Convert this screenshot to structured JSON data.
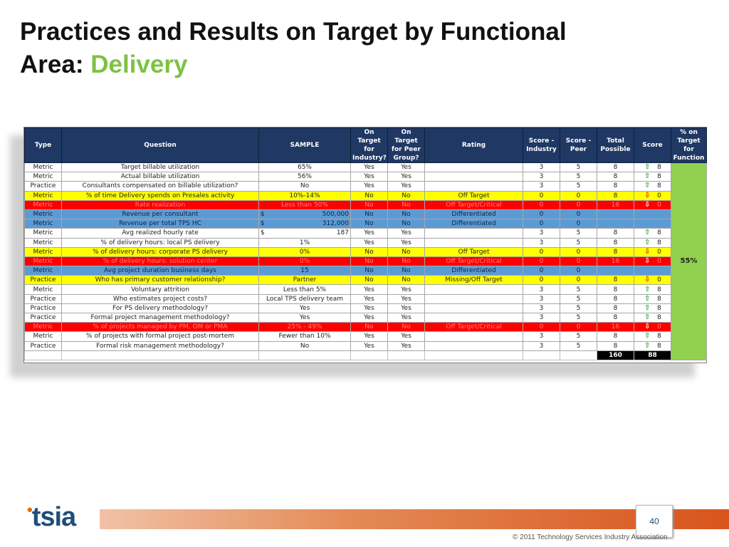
{
  "title": {
    "line1": "Practices and Results on Target by Functional",
    "line2_prefix": "Area: ",
    "line2_accent": "Delivery"
  },
  "table": {
    "headers": [
      "Type",
      "Question",
      "SAMPLE",
      "On Target for Industry?",
      "On Target for Peer Group?",
      "Rating",
      "Score - Industry",
      "Score - Peer",
      "Total Possible",
      "Score",
      "% on Target for Function"
    ],
    "pct_on_target": "55%",
    "rows": [
      {
        "style": "white",
        "type": "Metric",
        "question": "Target billable utilization",
        "sample": "65%",
        "sample_prefix": "",
        "industry": "Yes",
        "peer": "Yes",
        "rating": "",
        "si": "3",
        "sp": "5",
        "total": "8",
        "arrow": "up",
        "score": "8"
      },
      {
        "style": "white",
        "type": "Metric",
        "question": "Actual billable utilization",
        "sample": "56%",
        "sample_prefix": "",
        "industry": "Yes",
        "peer": "Yes",
        "rating": "",
        "si": "3",
        "sp": "5",
        "total": "8",
        "arrow": "up",
        "score": "8"
      },
      {
        "style": "white",
        "type": "Practice",
        "question": "Consultants compensated on billable utilization?",
        "sample": "No",
        "sample_prefix": "",
        "industry": "Yes",
        "peer": "Yes",
        "rating": "",
        "si": "3",
        "sp": "5",
        "total": "8",
        "arrow": "up",
        "score": "8"
      },
      {
        "style": "yellow",
        "type": "Metric",
        "question": "% of time Delivery spends on Presales activity",
        "sample": "10%-14%",
        "sample_prefix": "",
        "industry": "No",
        "peer": "No",
        "rating": "Off Target",
        "si": "0",
        "sp": "0",
        "total": "8",
        "arrow": "down",
        "score": "0"
      },
      {
        "style": "red",
        "type": "Metric",
        "question": "Rate realization",
        "sample": "Less than 50%",
        "sample_prefix": "",
        "industry": "No",
        "peer": "No",
        "rating": "Off Target/Critical",
        "si": "0",
        "sp": "0",
        "total": "16",
        "arrow": "down",
        "score": "0"
      },
      {
        "style": "blue",
        "type": "Metric",
        "question": "Revenue per consultant",
        "sample": "500,000",
        "sample_prefix": "$",
        "industry": "No",
        "peer": "No",
        "rating": "Differentiated",
        "si": "0",
        "sp": "0",
        "total": "",
        "arrow": "",
        "score": ""
      },
      {
        "style": "blue",
        "type": "Metric",
        "question": "Revenue per total TPS HC",
        "sample": "312,000",
        "sample_prefix": "$",
        "industry": "No",
        "peer": "No",
        "rating": "Differentiated",
        "si": "0",
        "sp": "0",
        "total": "",
        "arrow": "",
        "score": ""
      },
      {
        "style": "white",
        "type": "Metric",
        "question": "Avg realized hourly rate",
        "sample": "187",
        "sample_prefix": "$",
        "industry": "Yes",
        "peer": "Yes",
        "rating": "",
        "si": "3",
        "sp": "5",
        "total": "8",
        "arrow": "up",
        "score": "8"
      },
      {
        "style": "white",
        "type": "Metric",
        "question": "% of delivery hours: local PS delivery",
        "sample": "1%",
        "sample_prefix": "",
        "industry": "Yes",
        "peer": "Yes",
        "rating": "",
        "si": "3",
        "sp": "5",
        "total": "8",
        "arrow": "up",
        "score": "8"
      },
      {
        "style": "yellow",
        "type": "Metric",
        "question": "% of delivery hours: corporate PS delivery",
        "sample": "0%",
        "sample_prefix": "",
        "industry": "No",
        "peer": "No",
        "rating": "Off Target",
        "si": "0",
        "sp": "0",
        "total": "8",
        "arrow": "down",
        "score": "0"
      },
      {
        "style": "red",
        "type": "Metric",
        "question": "% of delivery hours: solution center",
        "sample": "0%",
        "sample_prefix": "",
        "industry": "No",
        "peer": "No",
        "rating": "Off Target/Critical",
        "si": "0",
        "sp": "0",
        "total": "16",
        "arrow": "down",
        "score": "0"
      },
      {
        "style": "blue",
        "type": "Metric",
        "question": "Avg project duration business days",
        "sample": "15",
        "sample_prefix": "",
        "industry": "No",
        "peer": "No",
        "rating": "Differentiated",
        "si": "0",
        "sp": "0",
        "total": "",
        "arrow": "",
        "score": ""
      },
      {
        "style": "yellow",
        "type": "Practice",
        "question": "Who has primary customer relationship?",
        "sample": "Partner",
        "sample_prefix": "",
        "industry": "No",
        "peer": "No",
        "rating": "Missing/Off Target",
        "si": "0",
        "sp": "0",
        "total": "8",
        "arrow": "down",
        "score": "0"
      },
      {
        "style": "white",
        "type": "Metric",
        "question": "Voluntary attrition",
        "sample": "Less than 5%",
        "sample_prefix": "",
        "industry": "Yes",
        "peer": "Yes",
        "rating": "",
        "si": "3",
        "sp": "5",
        "total": "8",
        "arrow": "up",
        "score": "8"
      },
      {
        "style": "white",
        "type": "Practice",
        "question": "Who estimates project costs?",
        "sample": "Local TPS delivery team",
        "sample_prefix": "",
        "industry": "Yes",
        "peer": "Yes",
        "rating": "",
        "si": "3",
        "sp": "5",
        "total": "8",
        "arrow": "up",
        "score": "8"
      },
      {
        "style": "white",
        "type": "Practice",
        "question": "For PS delivery methodology?",
        "sample": "Yes",
        "sample_prefix": "",
        "industry": "Yes",
        "peer": "Yes",
        "rating": "",
        "si": "3",
        "sp": "5",
        "total": "8",
        "arrow": "up",
        "score": "8"
      },
      {
        "style": "white",
        "type": "Practice",
        "question": "Formal project management methodology?",
        "sample": "Yes",
        "sample_prefix": "",
        "industry": "Yes",
        "peer": "Yes",
        "rating": "",
        "si": "3",
        "sp": "5",
        "total": "8",
        "arrow": "up",
        "score": "8"
      },
      {
        "style": "red",
        "type": "Metric",
        "question": "% of projects managed by PM, OM or PMA",
        "sample": "25% - 49%",
        "sample_prefix": "",
        "industry": "No",
        "peer": "No",
        "rating": "Off Target/Critical",
        "si": "0",
        "sp": "0",
        "total": "16",
        "arrow": "down",
        "score": "0"
      },
      {
        "style": "white",
        "type": "Metric",
        "question": "% of projects with formal project post-mortem",
        "sample": "Fewer than 10%",
        "sample_prefix": "",
        "industry": "Yes",
        "peer": "Yes",
        "rating": "",
        "si": "3",
        "sp": "5",
        "total": "8",
        "arrow": "up",
        "score": "8"
      },
      {
        "style": "white",
        "type": "Practice",
        "question": "Formal risk management methodology?",
        "sample": "No",
        "sample_prefix": "",
        "industry": "Yes",
        "peer": "Yes",
        "rating": "",
        "si": "3",
        "sp": "5",
        "total": "8",
        "arrow": "up",
        "score": "8"
      }
    ],
    "totals": {
      "total_possible": "160",
      "score": "88"
    }
  },
  "arrows": {
    "up": "⇧",
    "down": "⇩"
  },
  "footer": {
    "logo_text": "tsia",
    "page_number": "40",
    "copyright": "© 2011 Technology Services Industry Association"
  }
}
